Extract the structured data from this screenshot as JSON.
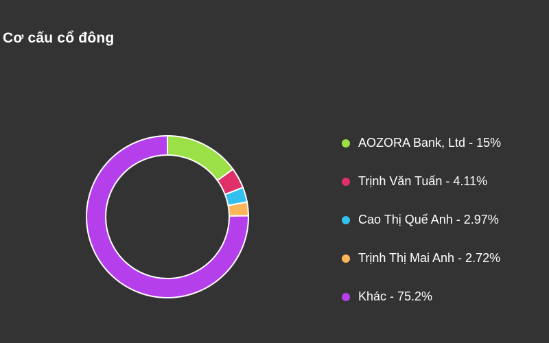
{
  "header": {
    "title": "Cơ cấu cổ đông"
  },
  "chart_data": {
    "type": "pie",
    "donut": true,
    "title": "Cơ cấu cổ đông",
    "legend": "right",
    "slices": [
      {
        "name": "AOZORA Bank, Ltd",
        "value": 15,
        "label": "AOZORA Bank, Ltd - 15%",
        "color": "#9BE046"
      },
      {
        "name": "Trịnh Văn Tuấn",
        "value": 4.11,
        "label": "Trịnh Văn Tuấn - 4.11%",
        "color": "#E0306A"
      },
      {
        "name": "Cao Thị Quế Anh",
        "value": 2.97,
        "label": "Cao Thị Quế Anh - 2.97%",
        "color": "#33C0EE"
      },
      {
        "name": "Trịnh Thị Mai Anh",
        "value": 2.72,
        "label": "Trịnh Thị Mai Anh - 2.72%",
        "color": "#FDB55A"
      },
      {
        "name": "Khác",
        "value": 75.2,
        "label": "Khác - 75.2%",
        "color": "#B43FEB"
      }
    ]
  }
}
